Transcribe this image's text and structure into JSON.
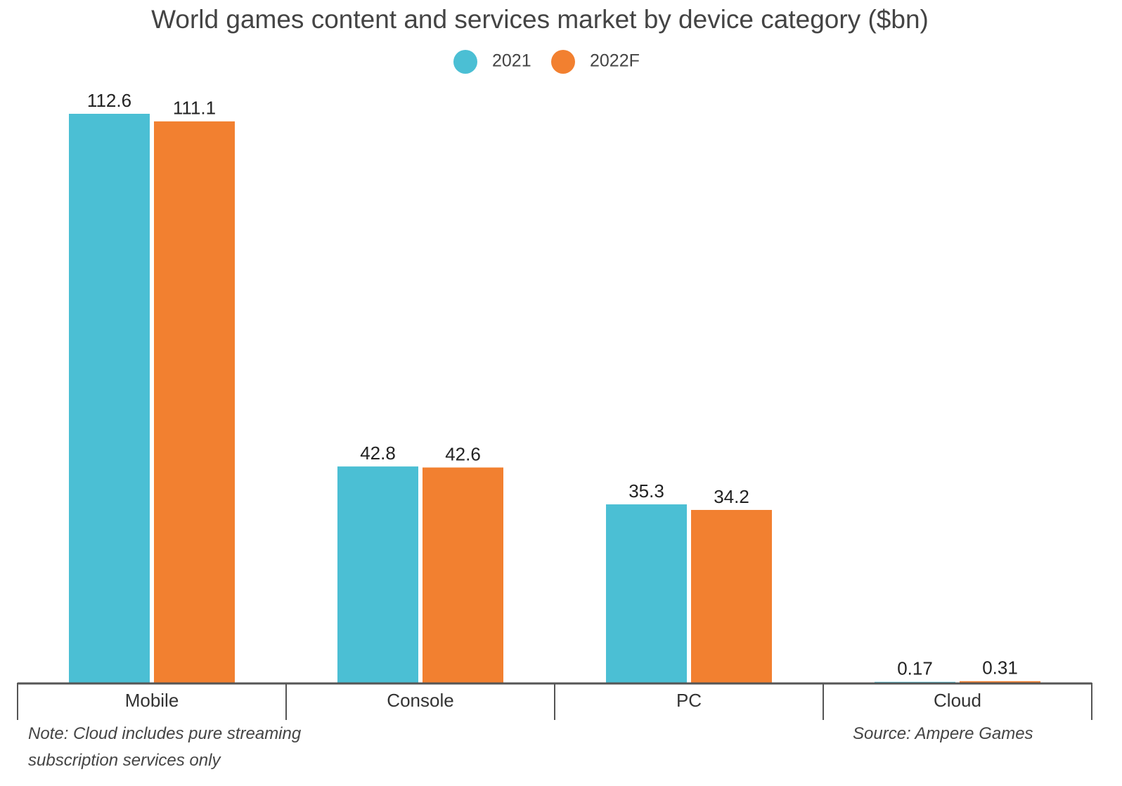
{
  "chart_data": {
    "type": "bar",
    "title": "World games content and services market by device category ($bn)",
    "categories": [
      "Mobile",
      "Console",
      "PC",
      "Cloud"
    ],
    "series": [
      {
        "name": "2021",
        "color": "#4bbfd4",
        "values": [
          112.6,
          42.8,
          35.3,
          0.17
        ]
      },
      {
        "name": "2022F",
        "color": "#f28030",
        "values": [
          111.1,
          42.6,
          34.2,
          0.31
        ]
      }
    ],
    "note": "Note: Cloud includes pure streaming subscription services only",
    "source": "Source: Ampere Games"
  }
}
